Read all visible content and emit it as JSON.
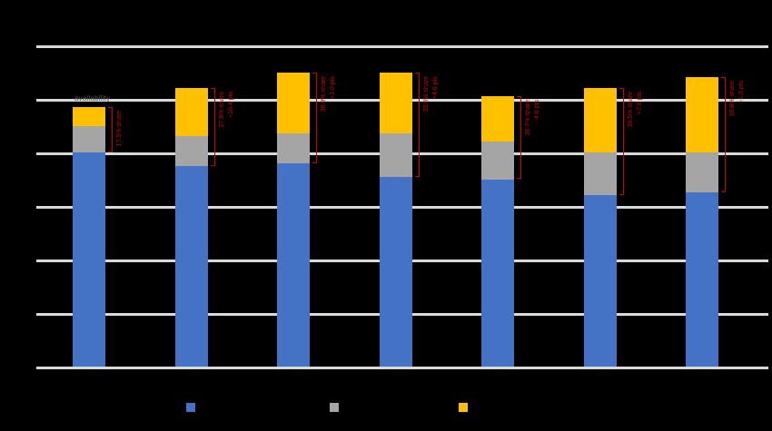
{
  "colors": {
    "background": "#000000",
    "gridline": "#D9D9D9",
    "annotation": "#CC0000"
  },
  "chart_data": {
    "type": "bar",
    "subtype": "stacked-column",
    "title": "",
    "xlabel": "",
    "ylabel": "",
    "categories": [
      "",
      "",
      "",
      "",
      "",
      "",
      ""
    ],
    "series": [
      {
        "name": "blue",
        "color": "#4472C4",
        "values": [
          80,
          75,
          76,
          71,
          70,
          64,
          65
        ]
      },
      {
        "name": "gray",
        "color": "#A5A5A5",
        "values": [
          10,
          11,
          11,
          16,
          14,
          16,
          15
        ]
      },
      {
        "name": "yellow",
        "color": "#FFC000",
        "values": [
          7,
          18,
          23,
          23,
          17,
          24,
          28
        ]
      }
    ],
    "axis": {
      "y_min": 0,
      "y_max": 120,
      "y_step": 20,
      "gridline_count": 7,
      "grid": true,
      "tick_labels_visible": false
    },
    "legend_position": "bottom"
  },
  "annotations": {
    "bar_note": {
      "text": "availability"
    },
    "brackets": [
      {
        "bar": 1,
        "labels": [
          "17.5% share"
        ]
      },
      {
        "bar": 2,
        "labels": [
          "27.9% share",
          "+10.4 pts"
        ]
      },
      {
        "bar": 3,
        "labels": [
          "30.9% share",
          "+3.0 pts"
        ]
      },
      {
        "bar": 4,
        "labels": [
          "35.5% share",
          "+4.6 pts"
        ]
      },
      {
        "bar": 5,
        "labels": [
          "30.7% share",
          "-4.8 pts"
        ]
      },
      {
        "bar": 6,
        "labels": [
          "38.5% share",
          "+7.8 pts"
        ]
      },
      {
        "bar": 7,
        "labels": [
          "39.8% share",
          "+1.3 pts"
        ]
      }
    ]
  },
  "legend": {
    "items": [
      {
        "series": "blue",
        "color": "#4472C4",
        "label": ""
      },
      {
        "series": "gray",
        "color": "#A5A5A5",
        "label": ""
      },
      {
        "series": "yellow",
        "color": "#FFC000",
        "label": ""
      }
    ]
  }
}
